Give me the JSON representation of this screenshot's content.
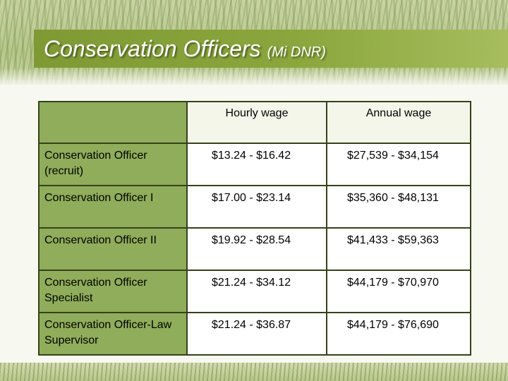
{
  "slide": {
    "title": "Conservation Officers",
    "subtitle": "(Mi DNR)"
  },
  "table": {
    "columns": [
      "",
      "Hourly wage",
      "Annual wage"
    ],
    "rows": [
      {
        "title": "Conservation Officer (recruit)",
        "hourly": "$13.24 - $16.42",
        "annual": "$27,539 - $34,154"
      },
      {
        "title": "Conservation Officer I",
        "hourly": "$17.00 - $23.14",
        "annual": "$35,360 - $48,131"
      },
      {
        "title": "Conservation Officer II",
        "hourly": "$19.92 - $28.54",
        "annual": "$41,433 - $59,363"
      },
      {
        "title": "Conservation Officer Specialist",
        "hourly": "$21.24 - $34.12",
        "annual": "$44,179 - $70,970"
      },
      {
        "title": "Conservation Officer-Law Supervisor",
        "hourly": "$21.24 - $36.87",
        "annual": "$44,179 - $76,690"
      }
    ]
  },
  "colors": {
    "title_band": "#8aa63c",
    "label_cell": "#8fad5a",
    "border": "#35421a"
  }
}
